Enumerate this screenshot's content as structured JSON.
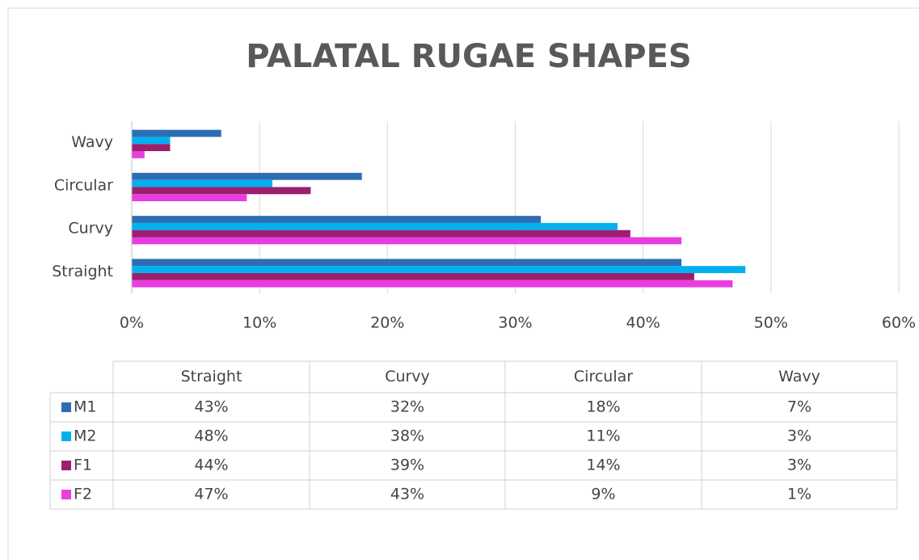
{
  "chart_data": {
    "type": "bar",
    "orientation": "horizontal",
    "title": "PALATAL RUGAE SHAPES",
    "categories": [
      "Straight",
      "Curvy",
      "Circular",
      "Wavy"
    ],
    "series": [
      {
        "name": "M1",
        "color": "#2e6db4",
        "values": [
          43,
          32,
          18,
          7
        ],
        "value_labels": [
          "43%",
          "32%",
          "18%",
          "7%"
        ]
      },
      {
        "name": "M2",
        "color": "#00b0f0",
        "values": [
          48,
          38,
          11,
          3
        ],
        "value_labels": [
          "48%",
          "38%",
          "11%",
          "3%"
        ]
      },
      {
        "name": "F1",
        "color": "#9b1f6e",
        "values": [
          44,
          39,
          14,
          3
        ],
        "value_labels": [
          "44%",
          "39%",
          "14%",
          "3%"
        ]
      },
      {
        "name": "F2",
        "color": "#e83ee0",
        "values": [
          47,
          43,
          9,
          1
        ],
        "value_labels": [
          "47%",
          "43%",
          "9%",
          "1%"
        ]
      }
    ],
    "xlim": [
      0,
      60
    ],
    "xticks": [
      {
        "value": 0,
        "label": "0%"
      },
      {
        "value": 10,
        "label": "10%"
      },
      {
        "value": 20,
        "label": "20%"
      },
      {
        "value": 30,
        "label": "30%"
      },
      {
        "value": 40,
        "label": "40%"
      },
      {
        "value": 50,
        "label": "50%"
      },
      {
        "value": 60,
        "label": "60%"
      }
    ],
    "grid": true,
    "data_table": true
  }
}
